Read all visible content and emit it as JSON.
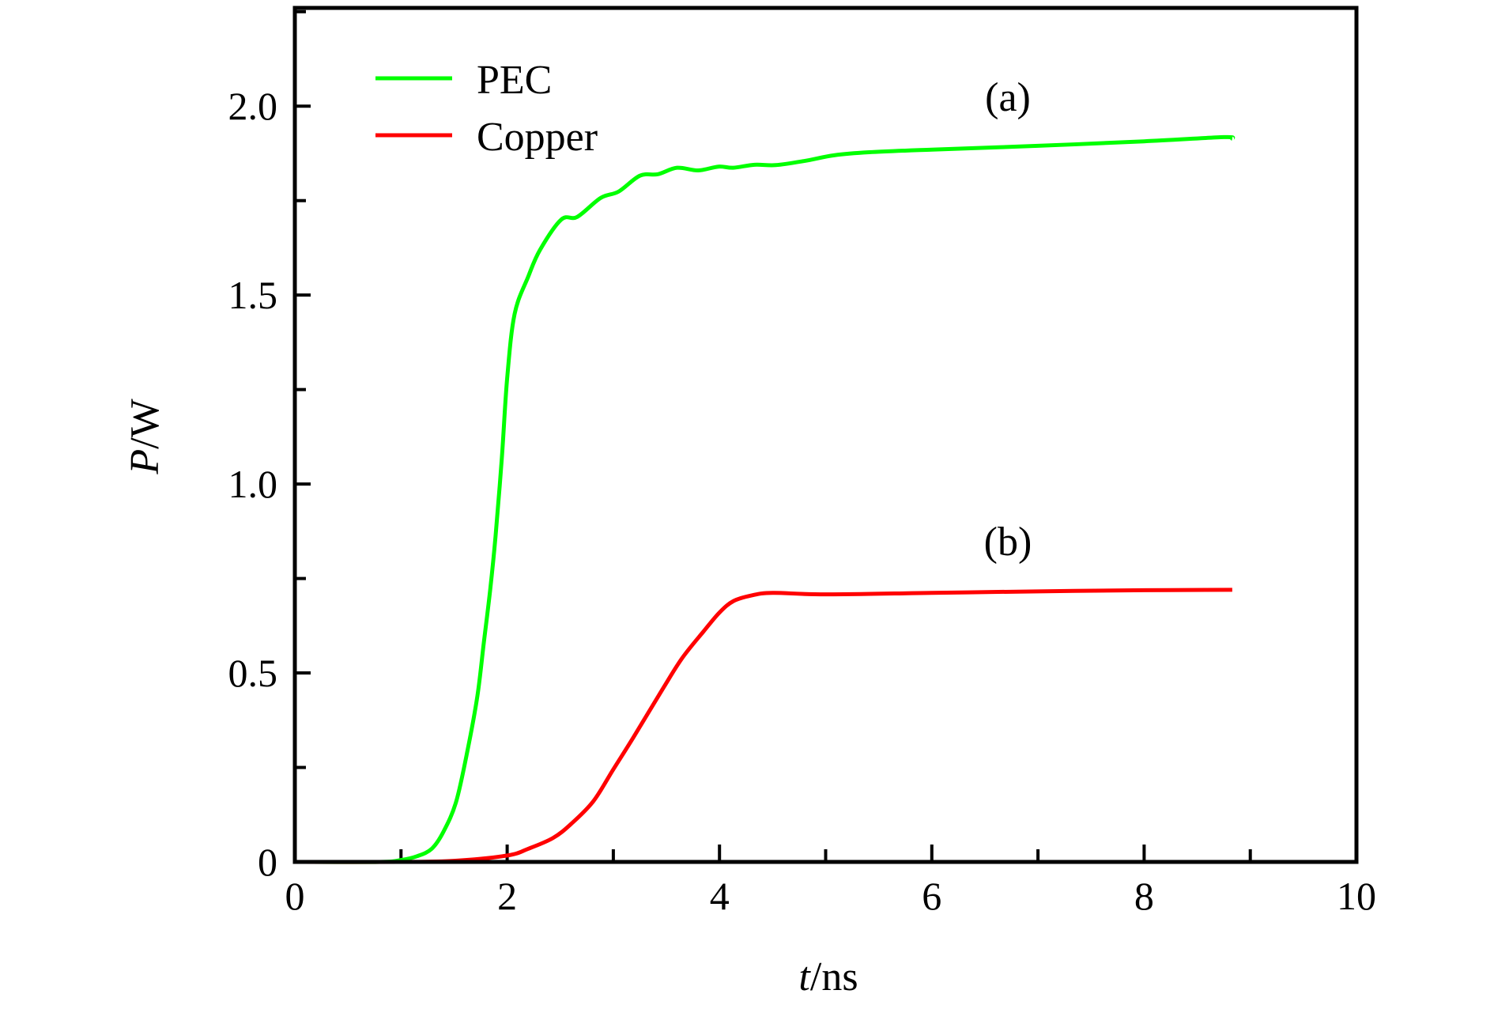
{
  "chart_data": {
    "type": "line",
    "title": "",
    "xlabel": {
      "italic": "t",
      "rest": "/ns"
    },
    "ylabel": {
      "italic": "P",
      "rest": "/W"
    },
    "xlim": [
      0,
      10
    ],
    "ylim": [
      0,
      2.26
    ],
    "x_ticks": [
      0,
      2,
      4,
      6,
      8,
      10
    ],
    "x_tick_labels": [
      "0",
      "2",
      "4",
      "6",
      "8",
      "10"
    ],
    "x_minor_step": 1,
    "y_ticks": [
      0,
      0.5,
      1.0,
      1.5,
      2.0
    ],
    "y_tick_labels": [
      "0",
      "0.5",
      "1.0",
      "1.5",
      "2.0"
    ],
    "y_minor_step": 0.25,
    "grid": false,
    "legend_position": "top-left",
    "series": [
      {
        "name": "PEC",
        "color": "#00ff00",
        "annotation": "(a)",
        "points": [
          [
            0,
            0
          ],
          [
            0.8,
            0
          ],
          [
            1.0,
            0.005
          ],
          [
            1.15,
            0.015
          ],
          [
            1.29,
            0.035
          ],
          [
            1.4,
            0.08
          ],
          [
            1.52,
            0.16
          ],
          [
            1.63,
            0.3
          ],
          [
            1.72,
            0.44
          ],
          [
            1.78,
            0.58
          ],
          [
            1.84,
            0.72
          ],
          [
            1.89,
            0.86
          ],
          [
            1.95,
            1.07
          ],
          [
            2.0,
            1.28
          ],
          [
            2.07,
            1.45
          ],
          [
            2.2,
            1.55
          ],
          [
            2.31,
            1.62
          ],
          [
            2.51,
            1.7
          ],
          [
            2.66,
            1.707
          ],
          [
            2.88,
            1.757
          ],
          [
            3.05,
            1.774
          ],
          [
            3.25,
            1.816
          ],
          [
            3.42,
            1.82
          ],
          [
            3.6,
            1.837
          ],
          [
            3.8,
            1.83
          ],
          [
            3.99,
            1.84
          ],
          [
            4.13,
            1.837
          ],
          [
            4.33,
            1.845
          ],
          [
            4.53,
            1.844
          ],
          [
            4.8,
            1.855
          ],
          [
            5.08,
            1.87
          ],
          [
            5.41,
            1.878
          ],
          [
            6.0,
            1.885
          ],
          [
            7.0,
            1.895
          ],
          [
            8.0,
            1.907
          ],
          [
            8.75,
            1.918
          ],
          [
            8.83,
            1.914
          ]
        ]
      },
      {
        "name": "Copper",
        "color": "#ff0000",
        "annotation": "(b)",
        "points": [
          [
            0,
            0
          ],
          [
            1.0,
            0
          ],
          [
            1.5,
            0.003
          ],
          [
            2.0,
            0.017
          ],
          [
            2.2,
            0.035
          ],
          [
            2.43,
            0.063
          ],
          [
            2.6,
            0.1
          ],
          [
            2.81,
            0.16
          ],
          [
            3.0,
            0.245
          ],
          [
            3.19,
            0.33
          ],
          [
            3.47,
            0.46
          ],
          [
            3.65,
            0.54
          ],
          [
            3.85,
            0.61
          ],
          [
            4.0,
            0.66
          ],
          [
            4.13,
            0.69
          ],
          [
            4.3,
            0.705
          ],
          [
            4.5,
            0.712
          ],
          [
            5.0,
            0.708
          ],
          [
            6.0,
            0.712
          ],
          [
            7.0,
            0.716
          ],
          [
            8.0,
            0.719
          ],
          [
            8.83,
            0.72
          ]
        ]
      }
    ]
  }
}
